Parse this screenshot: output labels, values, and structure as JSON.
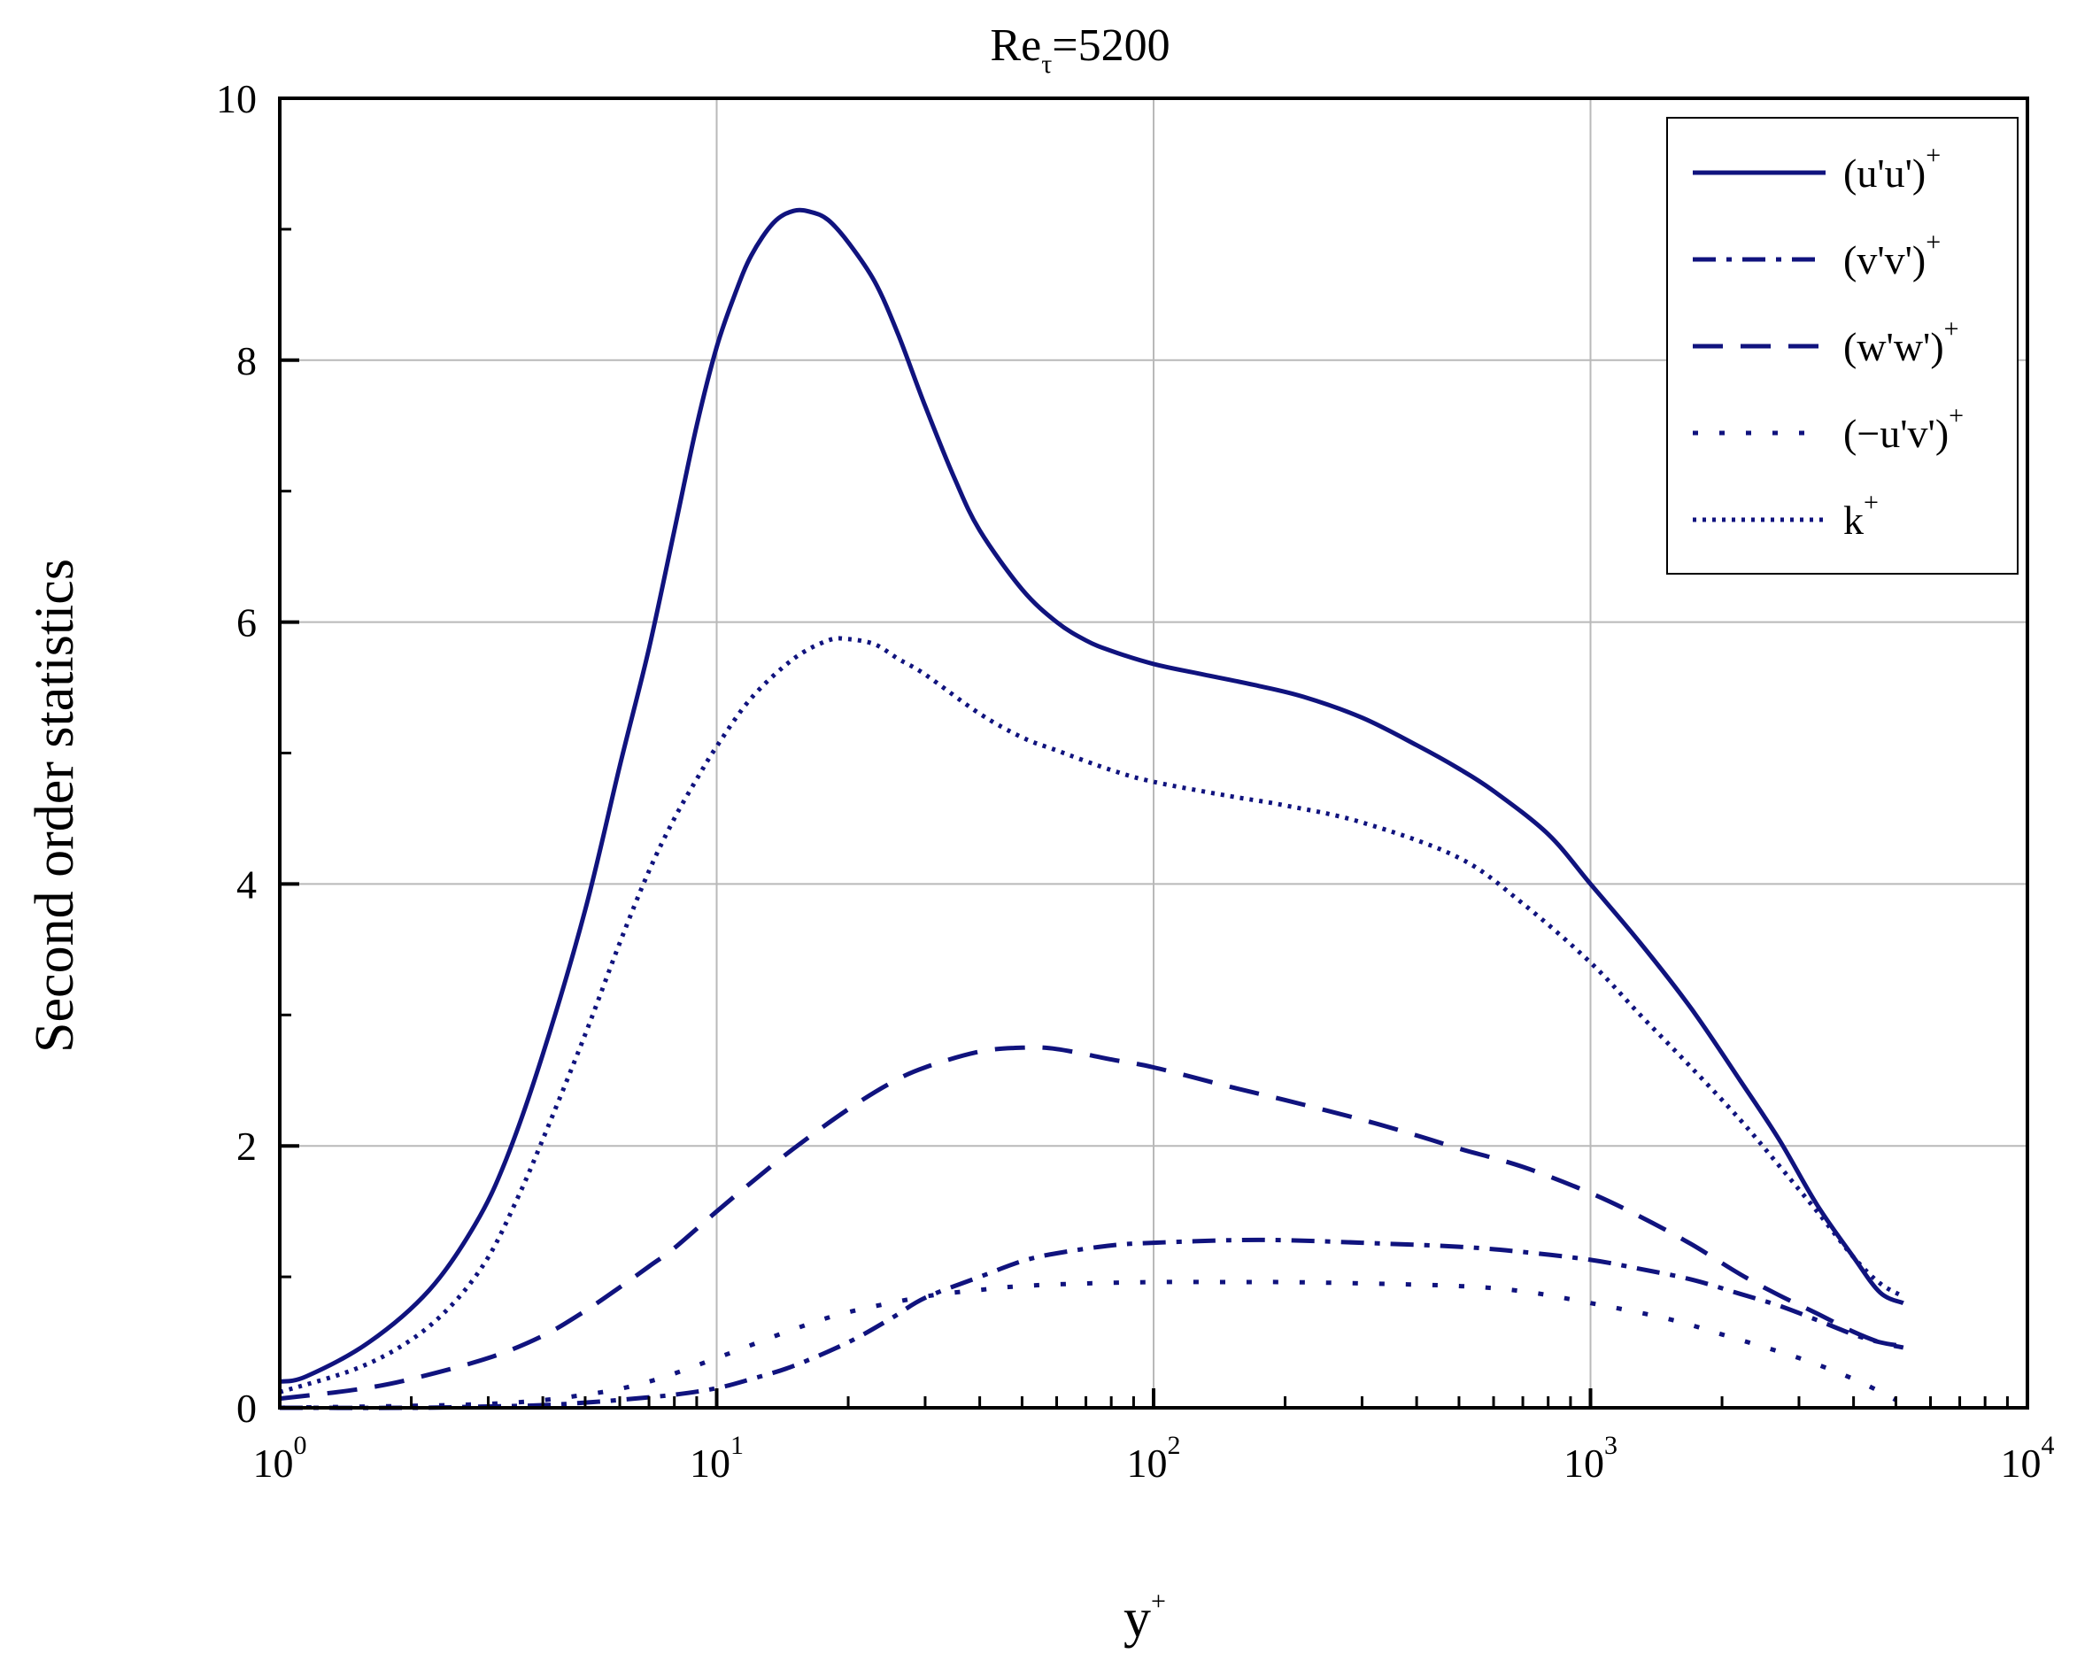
{
  "chart_data": {
    "type": "line",
    "title_main": "Re",
    "title_sub": "τ",
    "title_rest": "=5200",
    "xlabel_main": "y",
    "xlabel_sup": "+",
    "ylabel": "Second order statistics",
    "x_scale": "log",
    "xlim": [
      1,
      10000
    ],
    "ylim": [
      0,
      10
    ],
    "grid": true,
    "legend_position": "top-right",
    "x_ticks": [
      {
        "value": 1,
        "base": "10",
        "exp": "0"
      },
      {
        "value": 10,
        "base": "10",
        "exp": "1"
      },
      {
        "value": 100,
        "base": "10",
        "exp": "2"
      },
      {
        "value": 1000,
        "base": "10",
        "exp": "3"
      },
      {
        "value": 10000,
        "base": "10",
        "exp": "4"
      }
    ],
    "y_ticks": [
      {
        "value": 0,
        "label": "0"
      },
      {
        "value": 2,
        "label": "2"
      },
      {
        "value": 4,
        "label": "4"
      },
      {
        "value": 6,
        "label": "6"
      },
      {
        "value": 8,
        "label": "8"
      },
      {
        "value": 10,
        "label": "10"
      }
    ],
    "color": "#10137e",
    "series": [
      {
        "key": "uu",
        "name": "(u'u')",
        "name_sup": "+",
        "style": "solid",
        "points": [
          [
            1,
            0.2
          ],
          [
            1.15,
            0.24
          ],
          [
            1.6,
            0.5
          ],
          [
            2.2,
            0.9
          ],
          [
            2.8,
            1.4
          ],
          [
            3.3,
            1.9
          ],
          [
            4,
            2.7
          ],
          [
            5,
            3.8
          ],
          [
            6,
            4.9
          ],
          [
            7,
            5.8
          ],
          [
            8,
            6.7
          ],
          [
            9,
            7.5
          ],
          [
            10,
            8.1
          ],
          [
            11,
            8.5
          ],
          [
            12,
            8.8
          ],
          [
            13.5,
            9.05
          ],
          [
            15,
            9.14
          ],
          [
            16.5,
            9.13
          ],
          [
            18,
            9.07
          ],
          [
            20,
            8.9
          ],
          [
            23,
            8.6
          ],
          [
            26,
            8.2
          ],
          [
            30,
            7.65
          ],
          [
            35,
            7.1
          ],
          [
            40,
            6.7
          ],
          [
            50,
            6.25
          ],
          [
            60,
            6.0
          ],
          [
            70,
            5.86
          ],
          [
            80,
            5.78
          ],
          [
            100,
            5.68
          ],
          [
            130,
            5.6
          ],
          [
            170,
            5.52
          ],
          [
            220,
            5.43
          ],
          [
            300,
            5.27
          ],
          [
            400,
            5.06
          ],
          [
            500,
            4.88
          ],
          [
            600,
            4.71
          ],
          [
            800,
            4.38
          ],
          [
            1000,
            4.0
          ],
          [
            1300,
            3.55
          ],
          [
            1700,
            3.05
          ],
          [
            2200,
            2.5
          ],
          [
            2700,
            2.05
          ],
          [
            3300,
            1.55
          ],
          [
            4000,
            1.15
          ],
          [
            4600,
            0.88
          ],
          [
            5200,
            0.8
          ]
        ]
      },
      {
        "key": "vv",
        "name": "(v'v')",
        "name_sup": "+",
        "style": "dashdot",
        "points": [
          [
            1,
            0.0
          ],
          [
            2,
            0.0
          ],
          [
            3,
            0.01
          ],
          [
            4,
            0.02
          ],
          [
            5,
            0.04
          ],
          [
            6,
            0.06
          ],
          [
            8,
            0.1
          ],
          [
            10,
            0.15
          ],
          [
            12,
            0.22
          ],
          [
            15,
            0.32
          ],
          [
            20,
            0.5
          ],
          [
            25,
            0.68
          ],
          [
            30,
            0.84
          ],
          [
            40,
            1.0
          ],
          [
            50,
            1.12
          ],
          [
            60,
            1.18
          ],
          [
            80,
            1.24
          ],
          [
            100,
            1.26
          ],
          [
            150,
            1.28
          ],
          [
            200,
            1.28
          ],
          [
            300,
            1.26
          ],
          [
            500,
            1.23
          ],
          [
            700,
            1.19
          ],
          [
            1000,
            1.13
          ],
          [
            1300,
            1.06
          ],
          [
            1700,
            0.98
          ],
          [
            2200,
            0.87
          ],
          [
            2700,
            0.78
          ],
          [
            3300,
            0.67
          ],
          [
            4000,
            0.56
          ],
          [
            4600,
            0.5
          ],
          [
            5200,
            0.47
          ]
        ]
      },
      {
        "key": "ww",
        "name": "(w'w')",
        "name_sup": "+",
        "style": "dashed",
        "points": [
          [
            1,
            0.07
          ],
          [
            1.5,
            0.14
          ],
          [
            2,
            0.22
          ],
          [
            3,
            0.38
          ],
          [
            4,
            0.55
          ],
          [
            5,
            0.74
          ],
          [
            6,
            0.92
          ],
          [
            7,
            1.08
          ],
          [
            8,
            1.22
          ],
          [
            10,
            1.5
          ],
          [
            12,
            1.72
          ],
          [
            15,
            1.98
          ],
          [
            20,
            2.28
          ],
          [
            25,
            2.48
          ],
          [
            30,
            2.6
          ],
          [
            40,
            2.72
          ],
          [
            50,
            2.75
          ],
          [
            60,
            2.74
          ],
          [
            80,
            2.66
          ],
          [
            100,
            2.6
          ],
          [
            150,
            2.45
          ],
          [
            200,
            2.35
          ],
          [
            300,
            2.2
          ],
          [
            400,
            2.08
          ],
          [
            500,
            1.98
          ],
          [
            700,
            1.84
          ],
          [
            1000,
            1.64
          ],
          [
            1300,
            1.46
          ],
          [
            1700,
            1.25
          ],
          [
            2200,
            1.02
          ],
          [
            2700,
            0.86
          ],
          [
            3300,
            0.72
          ],
          [
            4000,
            0.58
          ],
          [
            4600,
            0.5
          ],
          [
            5200,
            0.46
          ]
        ]
      },
      {
        "key": "uv",
        "name": "(−u'v')",
        "name_sup": "+",
        "style": "dotted",
        "points": [
          [
            1,
            0.0
          ],
          [
            3,
            0.03
          ],
          [
            5,
            0.1
          ],
          [
            7,
            0.2
          ],
          [
            10,
            0.38
          ],
          [
            15,
            0.6
          ],
          [
            20,
            0.73
          ],
          [
            30,
            0.85
          ],
          [
            40,
            0.9
          ],
          [
            50,
            0.93
          ],
          [
            70,
            0.95
          ],
          [
            100,
            0.96
          ],
          [
            150,
            0.96
          ],
          [
            200,
            0.96
          ],
          [
            300,
            0.95
          ],
          [
            500,
            0.93
          ],
          [
            700,
            0.89
          ],
          [
            1000,
            0.8
          ],
          [
            1500,
            0.68
          ],
          [
            2000,
            0.56
          ],
          [
            3000,
            0.38
          ],
          [
            4000,
            0.22
          ],
          [
            5000,
            0.06
          ]
        ]
      },
      {
        "key": "k",
        "name": "k",
        "name_sup": "+",
        "style": "densedot",
        "points": [
          [
            1,
            0.12
          ],
          [
            1.5,
            0.3
          ],
          [
            2,
            0.52
          ],
          [
            2.5,
            0.8
          ],
          [
            3,
            1.15
          ],
          [
            3.5,
            1.6
          ],
          [
            4,
            2.05
          ],
          [
            5,
            2.85
          ],
          [
            6,
            3.55
          ],
          [
            7,
            4.1
          ],
          [
            8,
            4.5
          ],
          [
            9,
            4.8
          ],
          [
            10,
            5.05
          ],
          [
            12,
            5.42
          ],
          [
            15,
            5.72
          ],
          [
            18,
            5.86
          ],
          [
            20,
            5.87
          ],
          [
            23,
            5.83
          ],
          [
            26,
            5.72
          ],
          [
            30,
            5.6
          ],
          [
            40,
            5.3
          ],
          [
            50,
            5.12
          ],
          [
            60,
            5.02
          ],
          [
            80,
            4.87
          ],
          [
            100,
            4.78
          ],
          [
            150,
            4.67
          ],
          [
            200,
            4.6
          ],
          [
            300,
            4.47
          ],
          [
            500,
            4.2
          ],
          [
            700,
            3.85
          ],
          [
            1000,
            3.4
          ],
          [
            1300,
            3.0
          ],
          [
            1700,
            2.6
          ],
          [
            2200,
            2.2
          ],
          [
            2700,
            1.85
          ],
          [
            3300,
            1.5
          ],
          [
            4000,
            1.15
          ],
          [
            4600,
            0.95
          ],
          [
            5200,
            0.85
          ]
        ]
      }
    ]
  }
}
